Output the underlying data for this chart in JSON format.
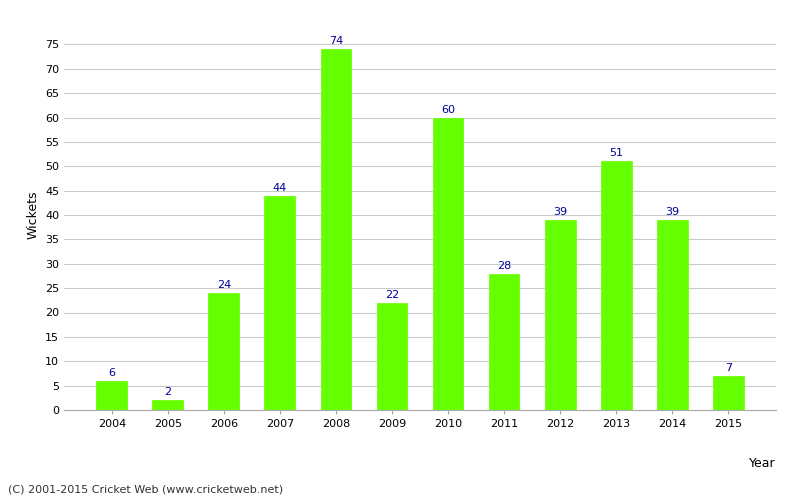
{
  "years": [
    2004,
    2005,
    2006,
    2007,
    2008,
    2009,
    2010,
    2011,
    2012,
    2013,
    2014,
    2015
  ],
  "wickets": [
    6,
    2,
    24,
    44,
    74,
    22,
    60,
    28,
    39,
    51,
    39,
    7
  ],
  "bar_color": "#66ff00",
  "bar_edge_color": "#66ff00",
  "label_color": "#000099",
  "xlabel": "Year",
  "ylabel": "Wickets",
  "ylim": [
    0,
    80
  ],
  "yticks": [
    0,
    5,
    10,
    15,
    20,
    25,
    30,
    35,
    40,
    45,
    50,
    55,
    60,
    65,
    70,
    75
  ],
  "background_color": "#ffffff",
  "grid_color": "#cccccc",
  "label_fontsize": 8,
  "axis_label_fontsize": 9,
  "tick_fontsize": 8,
  "footnote": "(C) 2001-2015 Cricket Web (www.cricketweb.net)",
  "footnote_fontsize": 8,
  "bar_width": 0.55
}
